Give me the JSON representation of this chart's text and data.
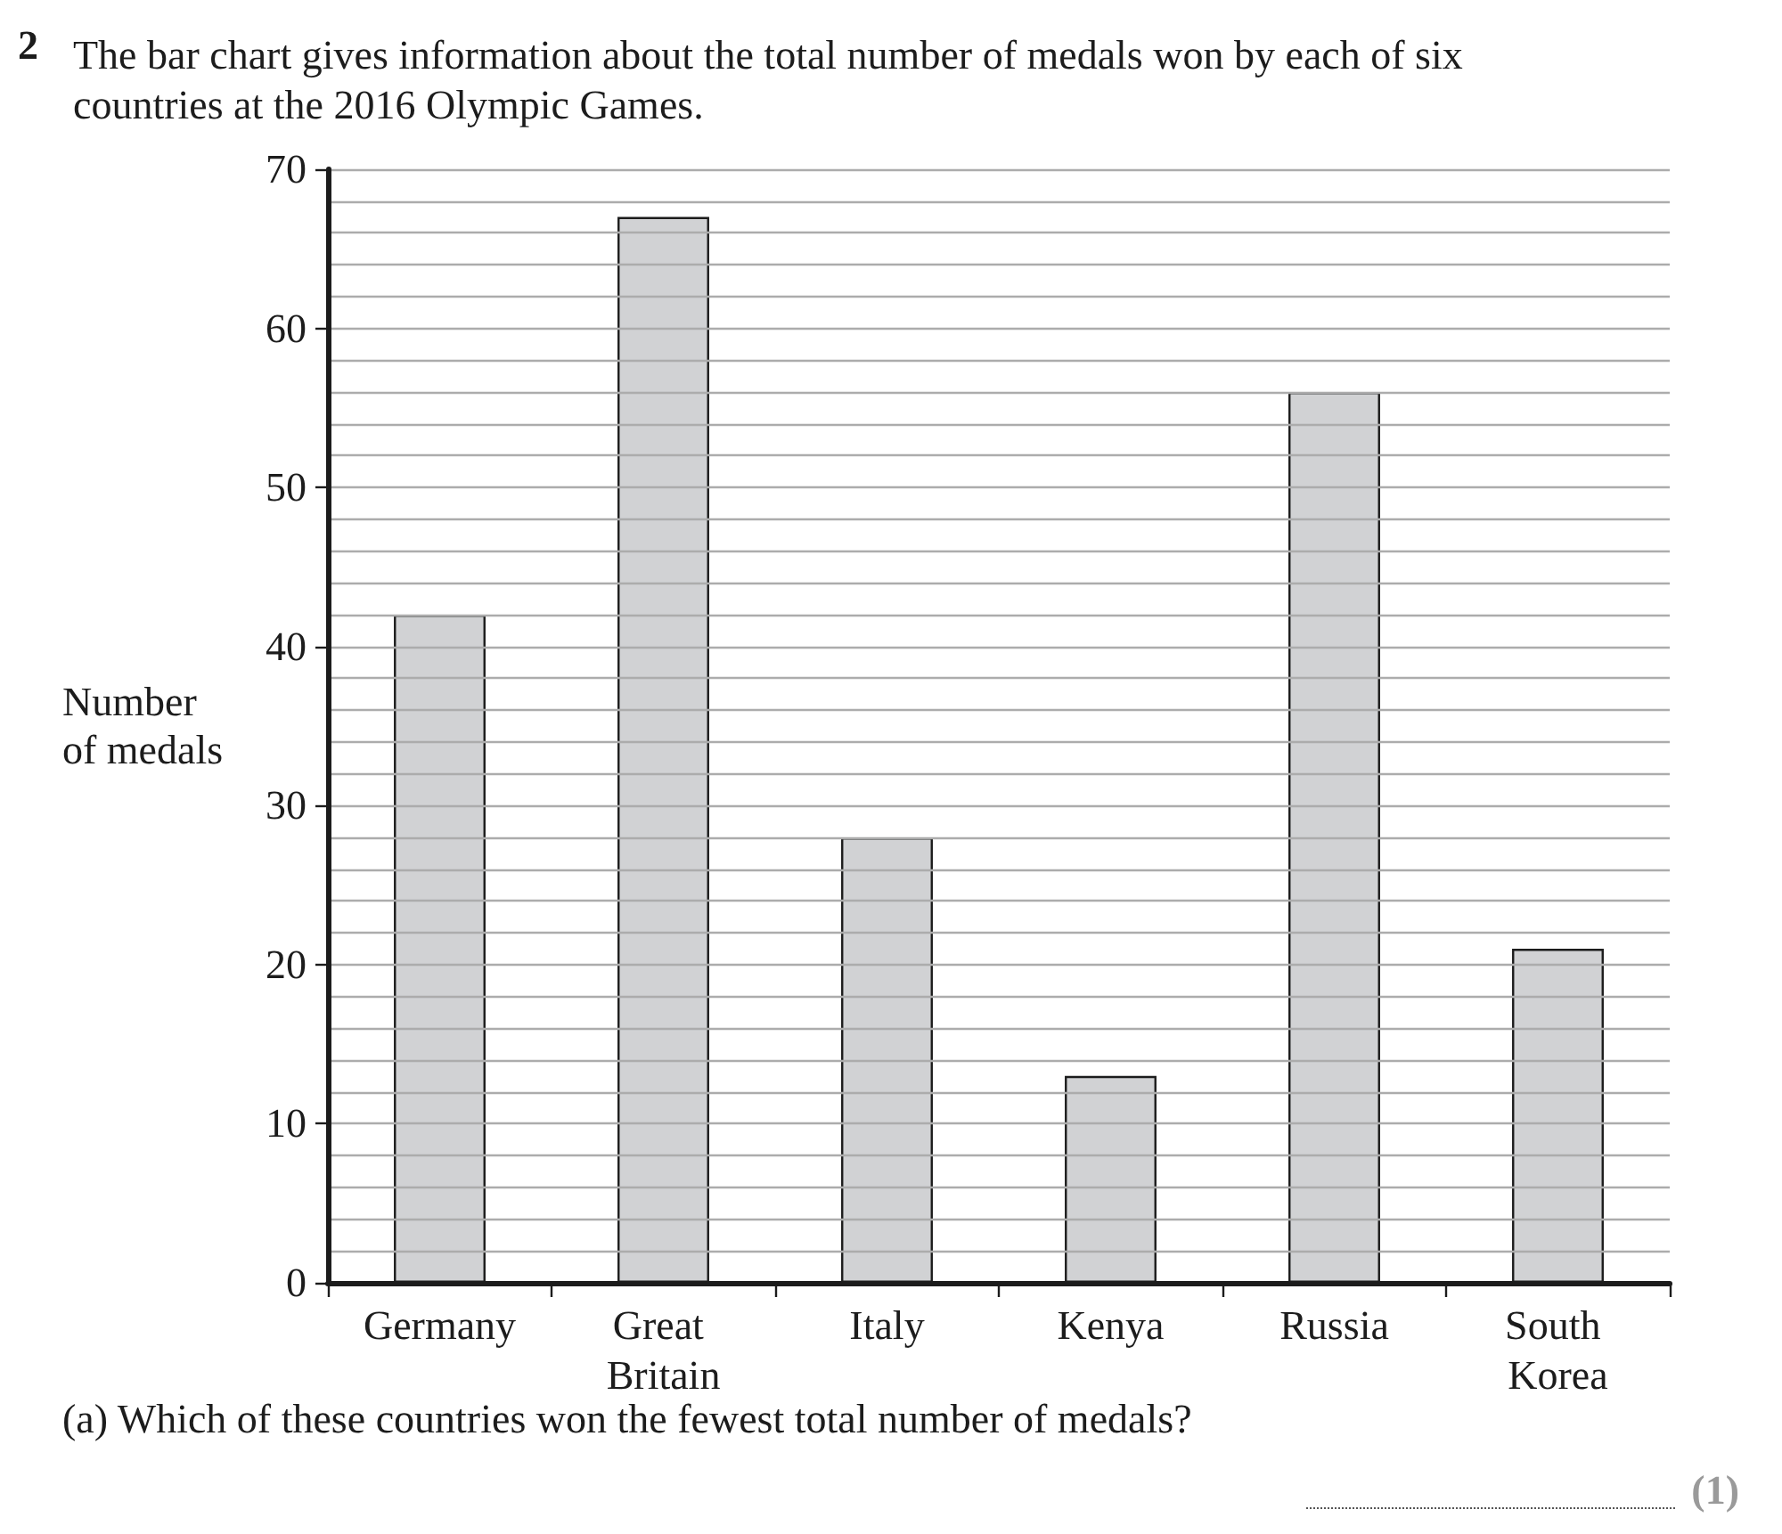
{
  "chart_data": {
    "type": "bar",
    "title": "The bar chart gives information about the total number of medals won by each of six countries at the 2016 Olympic Games.",
    "ylabel": "Number of medals",
    "categories": [
      "Germany",
      "Great Britain",
      "Italy",
      "Kenya",
      "Russia",
      "South Korea"
    ],
    "values": [
      42,
      67,
      28,
      13,
      56,
      21
    ],
    "color": "#d1d2d4",
    "ylim": [
      0,
      70
    ],
    "yticks": [
      0,
      {
        "value": 2,
        "label": null
      },
      {
        "value": 4,
        "label": null
      },
      {
        "value": 6,
        "label": null
      },
      {
        "value": 8,
        "label": null
      },
      10,
      {
        "value": 12,
        "label": null
      },
      {
        "value": 14,
        "label": null
      },
      {
        "value": 16,
        "label": null
      },
      {
        "value": 18,
        "label": null
      },
      20,
      {
        "value": 22,
        "label": null
      },
      {
        "value": 24,
        "label": null
      },
      {
        "value": 26,
        "label": null
      },
      {
        "value": 28,
        "label": null
      },
      30,
      {
        "value": 32,
        "label": null
      },
      {
        "value": 34,
        "label": null
      },
      {
        "value": 36,
        "label": null
      },
      {
        "value": 38,
        "label": null
      },
      40,
      {
        "value": 42,
        "label": null
      },
      {
        "value": 44,
        "label": null
      },
      {
        "value": 46,
        "label": null
      },
      {
        "value": 48,
        "label": null
      },
      50,
      {
        "value": 52,
        "label": null
      },
      {
        "value": 54,
        "label": null
      },
      {
        "value": 56,
        "label": null
      },
      {
        "value": 58,
        "label": null
      },
      60,
      {
        "value": 62,
        "label": null
      },
      {
        "value": 64,
        "label": null
      },
      {
        "value": 66,
        "label": null
      },
      {
        "value": 68,
        "label": null
      },
      70
    ],
    "grid": "y",
    "annotations": [
      "2",
      "(a) Which of these countries won the fewest total number of medals?",
      "(1)"
    ]
  }
}
